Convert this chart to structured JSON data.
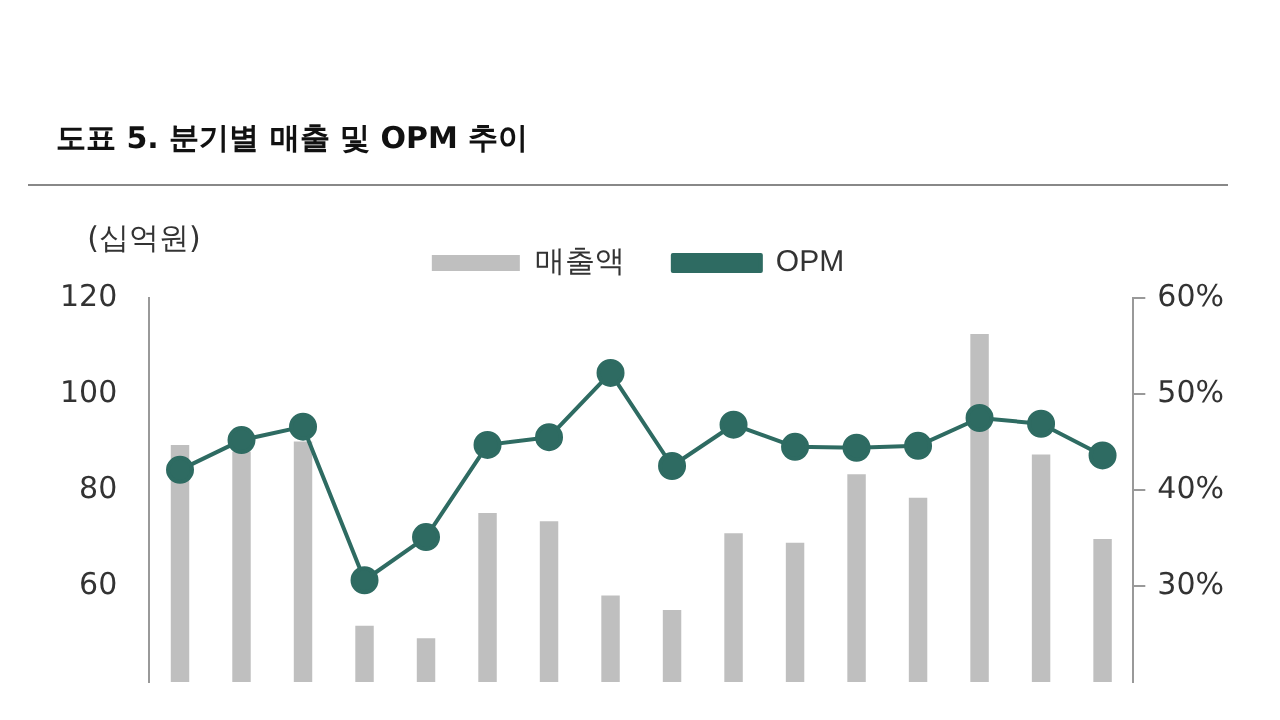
{
  "chart_data": {
    "type": "bar",
    "title": "도표 5. 분기별 매출 및 OPM 추이",
    "ylabel": "(십억원)",
    "categories": [
      null,
      null,
      null,
      null,
      null,
      null,
      null,
      null,
      null,
      null,
      null,
      null,
      null,
      null,
      null,
      null
    ],
    "series": [
      {
        "name": "매출액",
        "color": "#bfbfbf",
        "values": [
          89.4,
          88,
          90.1,
          51.7,
          49.1,
          75.2,
          73.5,
          58.0,
          55.0,
          71.0,
          69.0,
          83.3,
          78.4,
          112.5,
          87.4,
          69.8
        ]
      },
      {
        "name": "OPM",
        "type": "line",
        "axis": "y2",
        "color": "#2e6b62",
        "values": [
          42.1,
          45.2,
          46.6,
          30.6,
          35.1,
          44.7,
          45.5,
          52.2,
          42.5,
          46.8,
          44.5,
          44.4,
          44.6,
          47.5,
          46.9,
          43.6
        ]
      }
    ],
    "ylim": [
      40,
      120
    ],
    "yticks": [
      60,
      80,
      100,
      120
    ],
    "y2lim": [
      20,
      60
    ],
    "y2ticks": [
      {
        "value": 30,
        "label": "30%"
      },
      {
        "value": 40,
        "label": "40%"
      },
      {
        "value": 50,
        "label": "50%"
      },
      {
        "value": 60,
        "label": "60%"
      }
    ],
    "legend": "top",
    "marker": "circle",
    "grid": false
  }
}
